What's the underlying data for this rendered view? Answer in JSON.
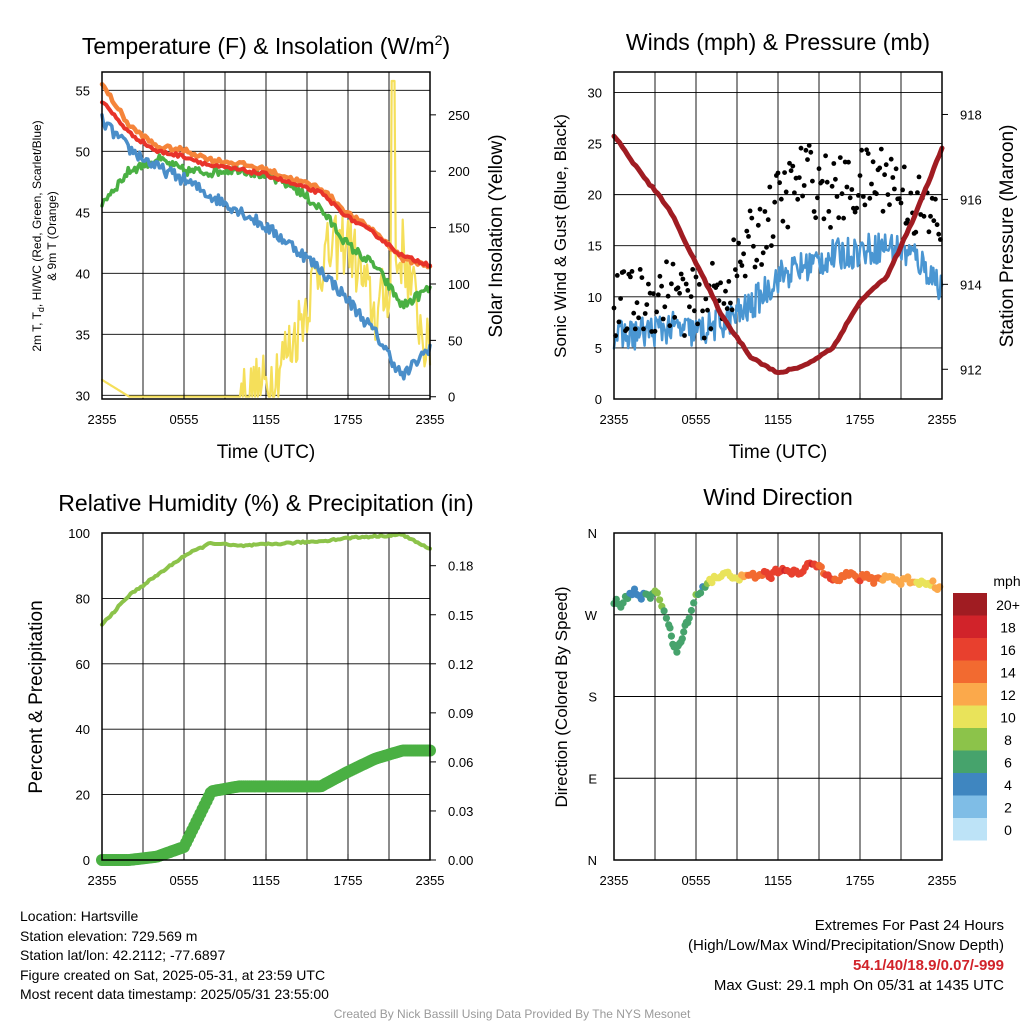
{
  "titles": {
    "temp": "Temperature (F) & Insolation (W/m",
    "temp_sup": "2",
    "temp_close": ")",
    "winds": "Winds (mph) & Pressure (mb)",
    "rh": "Relative Humidity (%) & Precipitation (in)",
    "wdir": "Wind Direction"
  },
  "axis_labels": {
    "temp_left_1": "2m T, T",
    "temp_left_d": "d",
    "temp_left_2": ", HI/WC (Red, Green, Scarlet/Blue)",
    "temp_left_3": "& 9m T (Orange)",
    "temp_right": "Solar Insolation (Yellow)",
    "winds_left": "Sonic Wind & Gust (Blue, Black)",
    "winds_right": "Station Pressure (Maroon)",
    "rh_left": "Percent & Precipitation",
    "wdir_left": "Direction (Colored By Speed)",
    "time_xlabel": "Time (UTC)"
  },
  "legend": {
    "unit": "mph",
    "labels": [
      "20+",
      "18",
      "16",
      "14",
      "12",
      "10",
      "8",
      "6",
      "4",
      "2",
      "0"
    ],
    "colors": [
      "#a01c22",
      "#d1232a",
      "#e8402e",
      "#f26a30",
      "#fba94b",
      "#e9e35a",
      "#8cc34a",
      "#46a36c",
      "#3f86c0",
      "#7fbde6",
      "#bde3f7"
    ]
  },
  "footer": {
    "location": "Location: Hartsville",
    "elevation": "Station elevation: 729.569 m",
    "latlon": "Station lat/lon: 42.2112; -77.6897",
    "created": "Figure created on Sat, 2025-05-31, at 23:59 UTC",
    "recent": "Most recent data timestamp: 2025/05/31 23:55:00",
    "extremes_title": "Extremes For Past 24 Hours",
    "extremes_desc": "(High/Low/Max Wind/Precipitation/Snow Depth)",
    "extremes_values": "54.1/40/18.9/0.07/-999",
    "max_gust": "Max Gust: 29.1 mph On 05/31 at 1435 UTC",
    "credit": "Created By Nick Bassill Using Data Provided By The NYS Mesonet"
  },
  "colors": {
    "temp": "#e8332a",
    "nine_m": "#f5843a",
    "dewpoint": "#4ab043",
    "heat_index": "#4a8ec9",
    "insolation": "#f5df5a",
    "wind": "#4a96d2",
    "gust": "#000000",
    "pressure": "#a01c22",
    "rh": "#8cc34a",
    "precip": "#4ab043"
  },
  "chart_data": [
    {
      "type": "line",
      "title": "Temperature (F) & Insolation (W/m2)",
      "xlabel": "Time (UTC)",
      "ylabel": "2m T, Td, HI/WC (Red, Green, Scarlet/Blue) & 9m T (Orange)",
      "y2label": "Solar Insolation (Yellow)",
      "x_ticks": [
        "2355",
        "0555",
        "1155",
        "1755",
        "2355"
      ],
      "x": [
        0,
        2,
        4,
        6,
        8,
        10,
        12,
        14,
        16,
        18,
        20,
        22,
        24
      ],
      "ylim": [
        29.7,
        56.5
      ],
      "y_ticks": [
        30,
        35,
        40,
        45,
        50,
        55
      ],
      "y2lim": [
        -2,
        288
      ],
      "y2_ticks": [
        0,
        50,
        100,
        150,
        200,
        250
      ],
      "grid": true,
      "series": [
        {
          "name": "2m T (Red)",
          "axis": "left",
          "values": [
            54.1,
            51.5,
            50.0,
            49.6,
            48.8,
            48.5,
            48.1,
            47.3,
            46.6,
            44.6,
            43.2,
            41.4,
            40.7
          ]
        },
        {
          "name": "9m T (Orange)",
          "axis": "left",
          "values": [
            55.5,
            52.1,
            50.4,
            50.1,
            49.3,
            49.0,
            48.5,
            47.7,
            47.0,
            44.9,
            43.4,
            41.2,
            40.6
          ]
        },
        {
          "name": "Td (Green)",
          "axis": "left",
          "values": [
            45.8,
            48.4,
            49.4,
            48.4,
            48.3,
            48.6,
            48.0,
            47.1,
            45.3,
            42.3,
            40.6,
            37.3,
            38.8
          ]
        },
        {
          "name": "HI/WC (Blue)",
          "axis": "left",
          "values": [
            52.5,
            50.2,
            48.7,
            47.7,
            46.3,
            45.2,
            43.8,
            42.2,
            40.3,
            37.8,
            35.1,
            31.5,
            34.0
          ]
        },
        {
          "name": "Solar Insolation (Yellow)",
          "axis": "right",
          "values": [
            15,
            0,
            0,
            0,
            0,
            0,
            10,
            50,
            120,
            140,
            70,
            130,
            30
          ]
        }
      ]
    },
    {
      "type": "line",
      "title": "Winds (mph) & Pressure (mb)",
      "xlabel": "Time (UTC)",
      "ylabel": "Sonic Wind & Gust (Blue, Black)",
      "y2label": "Station Pressure (Maroon)",
      "x_ticks": [
        "2355",
        "0555",
        "1155",
        "1755",
        "2355"
      ],
      "x": [
        0,
        2,
        4,
        6,
        8,
        10,
        12,
        14,
        16,
        18,
        20,
        22,
        24
      ],
      "ylim": [
        0,
        32
      ],
      "y_ticks": [
        0,
        5,
        10,
        15,
        20,
        25,
        30
      ],
      "y2lim": [
        911.3,
        919
      ],
      "y2_ticks": [
        912,
        914,
        916,
        918
      ],
      "grid": true,
      "series": [
        {
          "name": "Sonic Wind (Blue)",
          "axis": "left",
          "values": [
            6,
            6.5,
            7,
            6.5,
            7.5,
            9,
            12,
            13,
            14,
            14.5,
            15,
            14,
            11
          ]
        },
        {
          "name": "Gust (Black)",
          "axis": "left",
          "values": [
            9,
            9.5,
            10.5,
            9,
            10.5,
            15,
            19,
            22,
            20,
            21,
            22,
            19,
            17
          ]
        },
        {
          "name": "Station Pressure (Maroon)",
          "axis": "right",
          "values": [
            917.5,
            916.6,
            915.8,
            914.5,
            913.2,
            912.3,
            911.9,
            912.1,
            912.5,
            913.6,
            914.2,
            915.6,
            917.2
          ]
        }
      ]
    },
    {
      "type": "line",
      "title": "Relative Humidity (%) & Precipitation (in)",
      "xlabel": "",
      "ylabel": "Percent & Precipitation",
      "x_ticks": [
        "2355",
        "0555",
        "1155",
        "1755",
        "2355"
      ],
      "x": [
        0,
        2,
        4,
        6,
        8,
        10,
        12,
        14,
        16,
        18,
        20,
        22,
        24
      ],
      "ylim": [
        0,
        100
      ],
      "y_ticks": [
        0,
        20,
        40,
        60,
        80,
        100
      ],
      "y2lim": [
        0,
        0.2
      ],
      "y2_ticks": [
        0.0,
        0.03,
        0.06,
        0.09,
        0.12,
        0.15,
        0.18
      ],
      "grid": true,
      "series": [
        {
          "name": "Relative Humidity",
          "axis": "left",
          "values": [
            72,
            81,
            87,
            93,
            97,
            96,
            96.5,
            97,
            97.5,
            98.5,
            99,
            99.5,
            95
          ]
        },
        {
          "name": "Precipitation",
          "axis": "right",
          "values": [
            0.0,
            0.0,
            0.002,
            0.008,
            0.042,
            0.045,
            0.045,
            0.045,
            0.045,
            0.054,
            0.062,
            0.067,
            0.067
          ]
        }
      ]
    },
    {
      "type": "scatter",
      "title": "Wind Direction",
      "ylabel": "Direction (Colored By Speed)",
      "x_ticks": [
        "2355",
        "0555",
        "1155",
        "1755",
        "2355"
      ],
      "y_ticks": [
        "N",
        "W",
        "S",
        "E",
        "N"
      ],
      "ylim": [
        0,
        360
      ],
      "grid": true,
      "points": [
        {
          "x": 0.0,
          "dir": 285,
          "speed": 6
        },
        {
          "x": 0.5,
          "dir": 282,
          "speed": 6
        },
        {
          "x": 1.0,
          "dir": 290,
          "speed": 5
        },
        {
          "x": 1.5,
          "dir": 296,
          "speed": 4
        },
        {
          "x": 2.0,
          "dir": 291,
          "speed": 4
        },
        {
          "x": 2.5,
          "dir": 288,
          "speed": 6
        },
        {
          "x": 3.0,
          "dir": 295,
          "speed": 7
        },
        {
          "x": 3.5,
          "dir": 282,
          "speed": 7
        },
        {
          "x": 4.0,
          "dir": 262,
          "speed": 6
        },
        {
          "x": 4.3,
          "dir": 238,
          "speed": 6
        },
        {
          "x": 4.6,
          "dir": 230,
          "speed": 6
        },
        {
          "x": 4.9,
          "dir": 240,
          "speed": 6
        },
        {
          "x": 5.2,
          "dir": 255,
          "speed": 6
        },
        {
          "x": 5.5,
          "dir": 270,
          "speed": 6
        },
        {
          "x": 6.0,
          "dir": 290,
          "speed": 7
        },
        {
          "x": 6.5,
          "dir": 300,
          "speed": 4
        },
        {
          "x": 7.0,
          "dir": 308,
          "speed": 9
        },
        {
          "x": 7.5,
          "dir": 310,
          "speed": 9
        },
        {
          "x": 8.0,
          "dir": 313,
          "speed": 9
        },
        {
          "x": 8.5,
          "dir": 315,
          "speed": 10
        },
        {
          "x": 9.0,
          "dir": 312,
          "speed": 10
        },
        {
          "x": 9.5,
          "dir": 309,
          "speed": 12
        },
        {
          "x": 10.0,
          "dir": 314,
          "speed": 14
        },
        {
          "x": 10.5,
          "dir": 312,
          "speed": 13
        },
        {
          "x": 11.0,
          "dir": 316,
          "speed": 15
        },
        {
          "x": 11.5,
          "dir": 313,
          "speed": 15
        },
        {
          "x": 12.0,
          "dir": 318,
          "speed": 15
        },
        {
          "x": 12.5,
          "dir": 322,
          "speed": 17
        },
        {
          "x": 13.0,
          "dir": 318,
          "speed": 16
        },
        {
          "x": 13.5,
          "dir": 314,
          "speed": 16
        },
        {
          "x": 14.0,
          "dir": 320,
          "speed": 16
        },
        {
          "x": 14.5,
          "dir": 327,
          "speed": 17
        },
        {
          "x": 15.0,
          "dir": 323,
          "speed": 14
        },
        {
          "x": 15.5,
          "dir": 317,
          "speed": 15
        },
        {
          "x": 16.0,
          "dir": 312,
          "speed": 15
        },
        {
          "x": 16.5,
          "dir": 310,
          "speed": 13
        },
        {
          "x": 17.0,
          "dir": 314,
          "speed": 14
        },
        {
          "x": 17.5,
          "dir": 313,
          "speed": 14
        },
        {
          "x": 18.0,
          "dir": 310,
          "speed": 15
        },
        {
          "x": 18.5,
          "dir": 311,
          "speed": 14
        },
        {
          "x": 19.0,
          "dir": 308,
          "speed": 14
        },
        {
          "x": 19.5,
          "dir": 310,
          "speed": 13
        },
        {
          "x": 20.0,
          "dir": 313,
          "speed": 12
        },
        {
          "x": 20.5,
          "dir": 309,
          "speed": 12
        },
        {
          "x": 21.0,
          "dir": 306,
          "speed": 12
        },
        {
          "x": 21.5,
          "dir": 309,
          "speed": 12
        },
        {
          "x": 22.0,
          "dir": 307,
          "speed": 11
        },
        {
          "x": 22.5,
          "dir": 305,
          "speed": 10
        },
        {
          "x": 23.0,
          "dir": 307,
          "speed": 10
        },
        {
          "x": 23.5,
          "dir": 303,
          "speed": 12
        },
        {
          "x": 24.0,
          "dir": 296,
          "speed": 11
        }
      ]
    }
  ]
}
